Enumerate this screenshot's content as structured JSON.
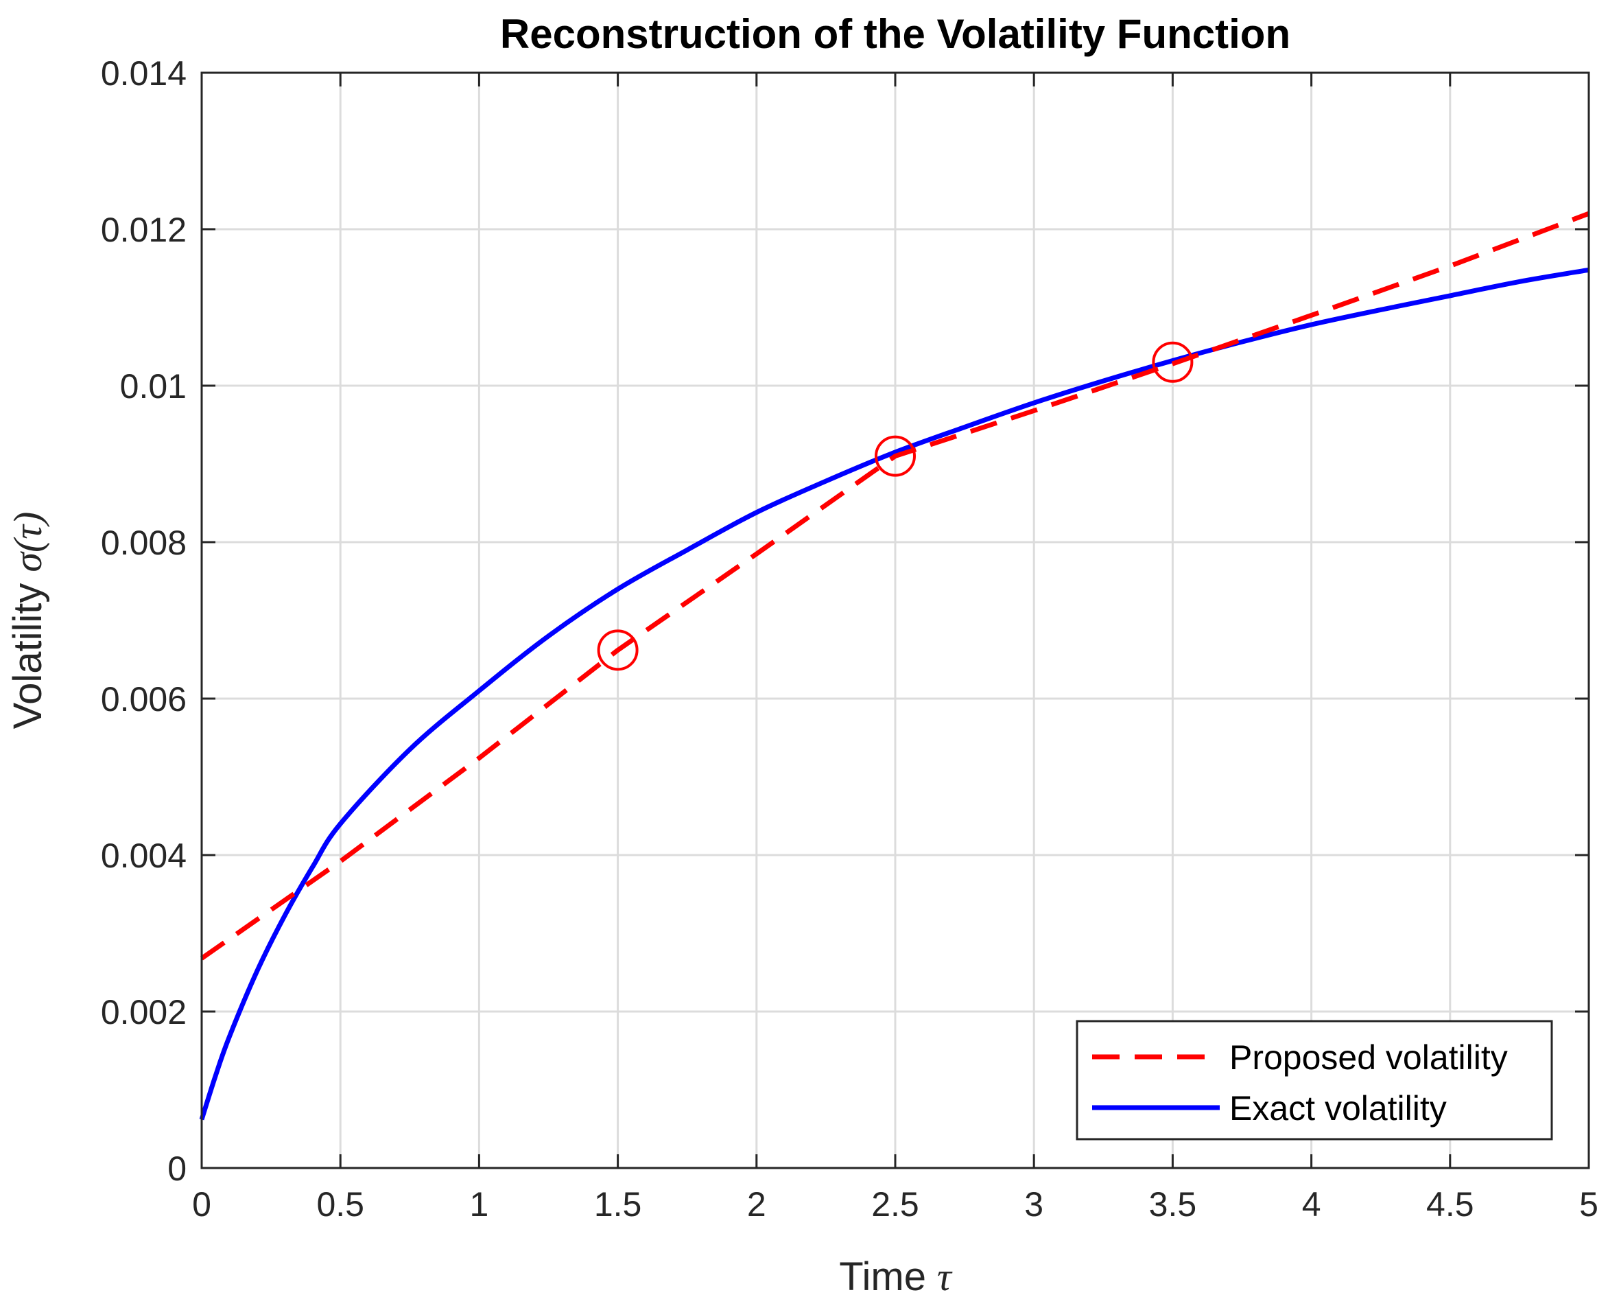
{
  "chart_data": {
    "type": "line",
    "title": "Reconstruction of the Volatility Function",
    "xlabel": {
      "prefix": "Time",
      "symbol": "τ"
    },
    "ylabel": {
      "prefix": "Volatility",
      "symbol": "σ(τ)"
    },
    "xlim": [
      0,
      5
    ],
    "ylim": [
      0,
      0.014
    ],
    "xticks": [
      0,
      0.5,
      1,
      1.5,
      2,
      2.5,
      3,
      3.5,
      4,
      4.5,
      5
    ],
    "xtick_labels": [
      "0",
      "0.5",
      "1",
      "1.5",
      "2",
      "2.5",
      "3",
      "3.5",
      "4",
      "4.5",
      "5"
    ],
    "yticks": [
      0,
      0.002,
      0.004,
      0.006,
      0.008,
      0.01,
      0.012,
      0.014
    ],
    "ytick_labels": [
      "0",
      "0.002",
      "0.004",
      "0.006",
      "0.008",
      "0.01",
      "0.012",
      "0.014"
    ],
    "grid": true,
    "legend_position": "bottom-right",
    "series": [
      {
        "name": "Proposed volatility",
        "color": "#ff0000",
        "style": "dashed",
        "x": [
          0,
          0.5,
          1.0,
          1.5,
          2.0,
          2.5,
          3.0,
          3.5,
          4.0,
          4.5,
          5.0
        ],
        "y": [
          0.00268,
          0.00392,
          0.00524,
          0.00662,
          0.00785,
          0.0091,
          0.00968,
          0.01028,
          0.0109,
          0.01153,
          0.0122
        ]
      },
      {
        "name": "Exact volatility",
        "color": "#0000ff",
        "style": "solid",
        "x": [
          0,
          0.05,
          0.1,
          0.2,
          0.3,
          0.4,
          0.5,
          0.75,
          1.0,
          1.25,
          1.5,
          1.75,
          2.0,
          2.25,
          2.5,
          2.75,
          3.0,
          3.25,
          3.5,
          3.75,
          4.0,
          4.25,
          4.5,
          4.75,
          5.0
        ],
        "y": [
          0.00062,
          0.00118,
          0.00168,
          0.00252,
          0.00323,
          0.00385,
          0.0044,
          0.00535,
          0.0061,
          0.0068,
          0.0074,
          0.0079,
          0.00838,
          0.00878,
          0.00915,
          0.00947,
          0.00978,
          0.01006,
          0.01032,
          0.01056,
          0.01078,
          0.01097,
          0.01115,
          0.01133,
          0.01148
        ]
      }
    ],
    "markers": {
      "series": "Proposed volatility",
      "shape": "circle",
      "color": "#ff0000",
      "x": [
        1.5,
        2.5,
        3.5
      ],
      "y": [
        0.00662,
        0.0091,
        0.0103
      ]
    }
  }
}
